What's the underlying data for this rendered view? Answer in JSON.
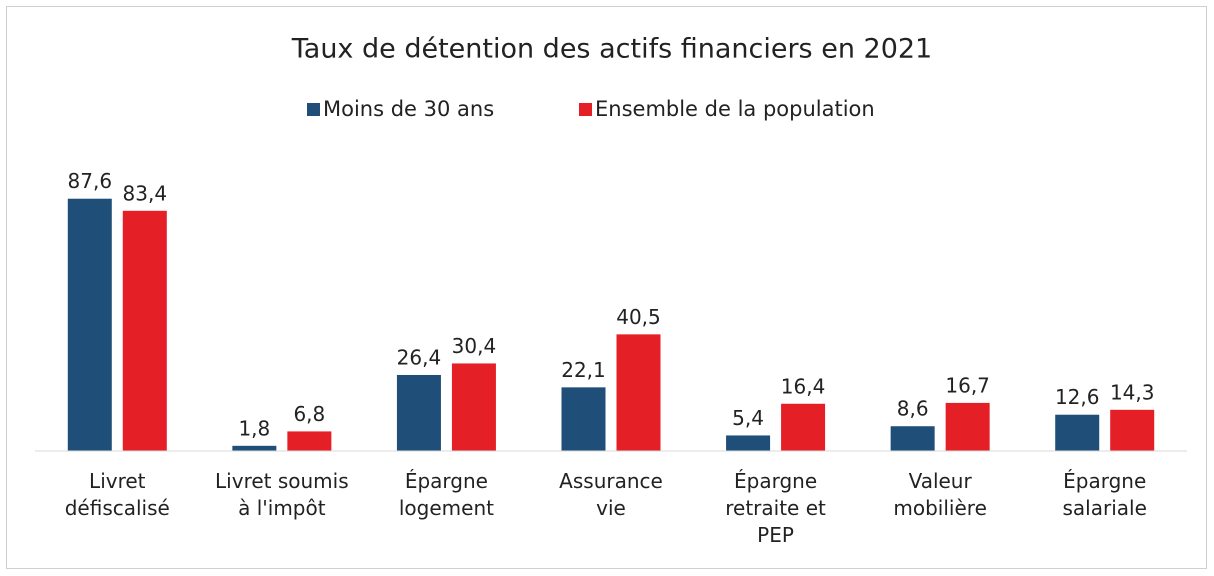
{
  "chart_data": {
    "type": "bar",
    "title": "Taux de détention des actifs financiers en 2021",
    "categories": [
      "Livret défiscalisé",
      "Livret soumis à l'impôt",
      "Épargne logement",
      "Assurance vie",
      "Épargne retraite et PEP",
      "Valeur mobilière",
      "Épargne salariale"
    ],
    "series": [
      {
        "name": "Moins de 30 ans",
        "color": "#1f4e79",
        "values": [
          87.6,
          1.8,
          26.4,
          22.1,
          5.4,
          8.6,
          12.6
        ],
        "value_labels": [
          "87,6",
          "1,8",
          "26,4",
          "22,1",
          "5,4",
          "8,6",
          "12,6"
        ]
      },
      {
        "name": "Ensemble de la population",
        "color": "#e41f26",
        "values": [
          83.4,
          6.8,
          30.4,
          40.5,
          16.4,
          16.7,
          14.3
        ],
        "value_labels": [
          "83,4",
          "6,8",
          "30,4",
          "40,5",
          "16,4",
          "16,7",
          "14,3"
        ]
      }
    ],
    "ylim": [
      0,
      100
    ]
  }
}
